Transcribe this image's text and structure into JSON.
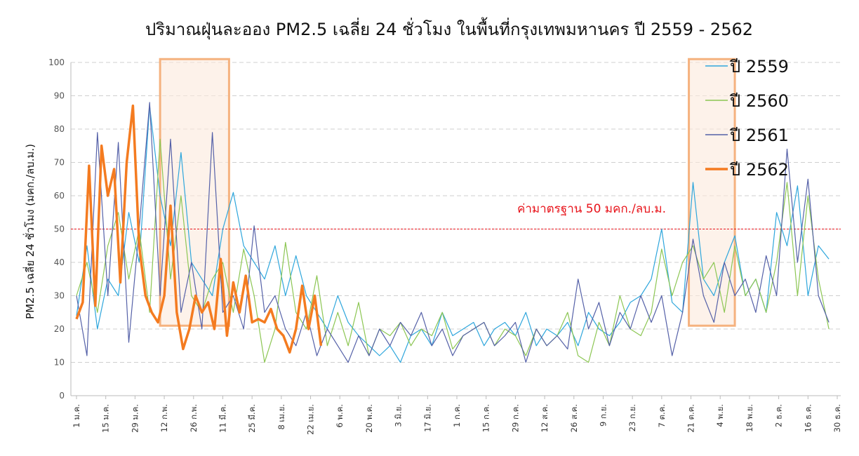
{
  "chart_data": {
    "type": "line",
    "title": "ปริมาณฝุ่นละออง PM2.5 เฉลี่ย 24 ชั่วโมง ในพื้นที่กรุงเทพมหานคร ปี 2559 - 2562",
    "xlabel": "",
    "ylabel": "PM2.5 เฉลี่ย 24 ชั่วโมง (มคก./ลบ.ม.)",
    "ylim": [
      0,
      100
    ],
    "yticks": [
      0,
      10,
      20,
      30,
      40,
      50,
      60,
      70,
      80,
      90,
      100
    ],
    "xlim_days": [
      0,
      364
    ],
    "xtick_step_days": 14,
    "xticks": [
      "1 ม.ค.",
      "15 ม.ค.",
      "29 ม.ค.",
      "12 ก.พ.",
      "26 ก.พ.",
      "11 มี.ค.",
      "25 มี.ค.",
      "8 เม.ย.",
      "22 เม.ย.",
      "6 พ.ค.",
      "20 พ.ค.",
      "3 มิ.ย.",
      "17 มิ.ย.",
      "1 ก.ค.",
      "15 ก.ค.",
      "29 ก.ค.",
      "12 ส.ค.",
      "26 ส.ค.",
      "9 ก.ย.",
      "23 ก.ย.",
      "7 ต.ค.",
      "21 ต.ค.",
      "4 พ.ย.",
      "18 พ.ย.",
      "2 ธ.ค.",
      "16 ธ.ค.",
      "30 ธ.ค."
    ],
    "grid": true,
    "legend_position": "top-right",
    "series": [
      {
        "name": "ปี 2559",
        "color": "#2ea6dc",
        "step_days": 5,
        "values": [
          24,
          45,
          20,
          35,
          30,
          55,
          40,
          87,
          60,
          45,
          73,
          40,
          35,
          30,
          50,
          61,
          45,
          40,
          35,
          45,
          30,
          42,
          30,
          25,
          20,
          30,
          22,
          18,
          15,
          12,
          15,
          10,
          18,
          20,
          15,
          25,
          18,
          20,
          22,
          15,
          20,
          22,
          18,
          25,
          15,
          20,
          18,
          22,
          15,
          25,
          20,
          18,
          22,
          28,
          30,
          35,
          50,
          28,
          25,
          64,
          35,
          30,
          40,
          48,
          30,
          35,
          25,
          55,
          45,
          63,
          30,
          45,
          41
        ]
      },
      {
        "name": "ปี 2560",
        "color": "#8cc653",
        "step_days": 5,
        "values": [
          30,
          40,
          25,
          45,
          55,
          35,
          50,
          25,
          77,
          35,
          60,
          30,
          25,
          35,
          40,
          25,
          44,
          30,
          10,
          20,
          46,
          25,
          20,
          36,
          15,
          25,
          15,
          28,
          12,
          20,
          18,
          22,
          15,
          20,
          18,
          25,
          14,
          18,
          20,
          22,
          15,
          20,
          18,
          12,
          20,
          15,
          18,
          25,
          12,
          10,
          22,
          15,
          30,
          20,
          18,
          25,
          44,
          30,
          40,
          45,
          35,
          40,
          25,
          45,
          30,
          35,
          25,
          40,
          64,
          30,
          60,
          35,
          20
        ]
      },
      {
        "name": "ปี 2561",
        "color": "#5561a8",
        "step_days": 5,
        "values": [
          30,
          12,
          79,
          30,
          76,
          16,
          50,
          88,
          30,
          77,
          25,
          40,
          20,
          79,
          25,
          30,
          20,
          51,
          25,
          30,
          20,
          15,
          25,
          12,
          20,
          15,
          10,
          18,
          12,
          20,
          15,
          22,
          18,
          25,
          15,
          20,
          12,
          18,
          20,
          22,
          15,
          18,
          22,
          10,
          20,
          15,
          18,
          14,
          35,
          20,
          28,
          15,
          25,
          20,
          30,
          22,
          30,
          12,
          25,
          47,
          30,
          22,
          40,
          30,
          35,
          25,
          42,
          30,
          74,
          40,
          65,
          30,
          22
        ]
      },
      {
        "name": "ปี 2562",
        "color": "#f47b20",
        "step_days": 3,
        "values": [
          23,
          28,
          69,
          27,
          75,
          60,
          68,
          34,
          70,
          87,
          45,
          30,
          25,
          22,
          30,
          57,
          25,
          14,
          20,
          30,
          25,
          28,
          20,
          41,
          18,
          34,
          25,
          36,
          22,
          23,
          22,
          26,
          20,
          18,
          13,
          20,
          33,
          20,
          30,
          15
        ]
      }
    ],
    "reference_line": {
      "value": 50,
      "label": "ค่ามาตรฐาน 50 มคก./ลบ.ม.",
      "color": "#e8141b"
    },
    "highlight_regions": [
      {
        "x_days": [
          40,
          73
        ],
        "y": [
          21,
          101
        ]
      },
      {
        "x_days": [
          293,
          315
        ],
        "y": [
          21,
          101
        ]
      }
    ]
  }
}
